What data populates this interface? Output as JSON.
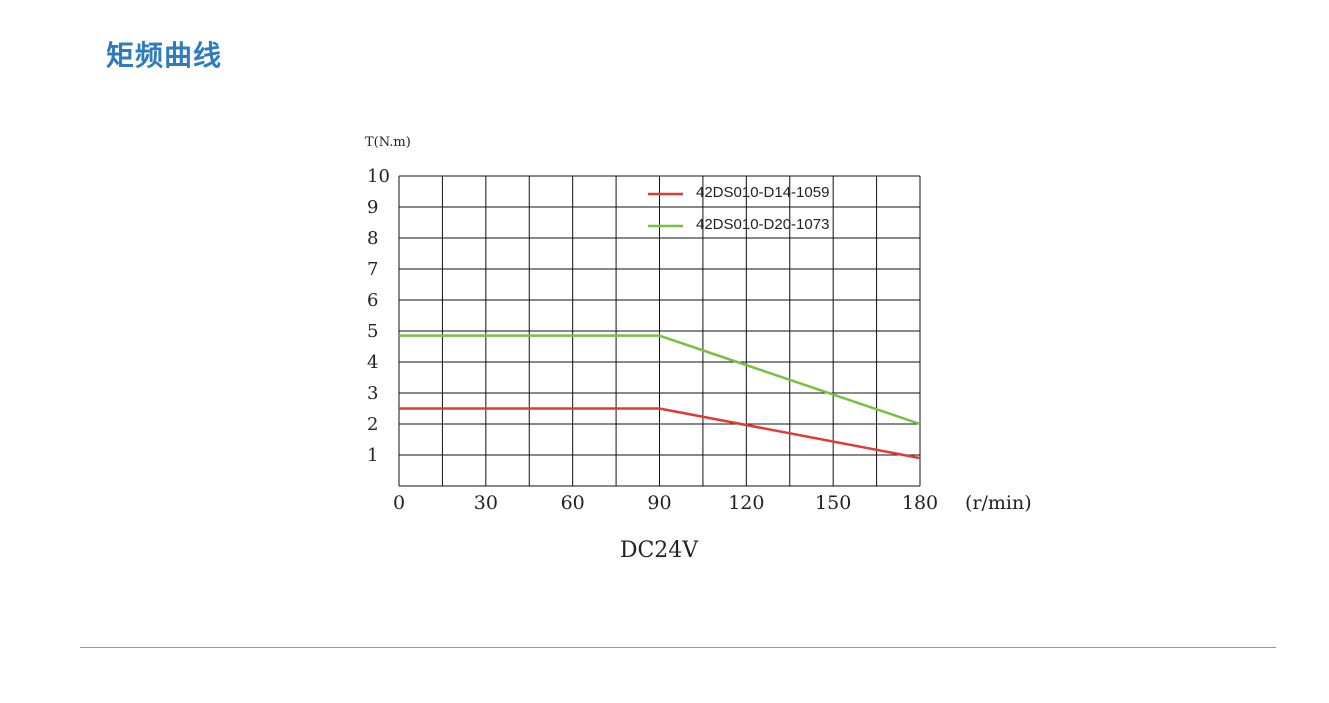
{
  "page": {
    "title": "矩频曲线"
  },
  "chart_data": {
    "type": "line",
    "title": "",
    "xlabel": "(r/min)",
    "ylabel": "T(N.m)",
    "caption": "DC24V",
    "xlim": [
      0,
      180
    ],
    "ylim": [
      0,
      10
    ],
    "x_ticks": [
      0,
      30,
      60,
      90,
      120,
      150,
      180
    ],
    "y_ticks": [
      1,
      2,
      3,
      4,
      5,
      6,
      7,
      8,
      9,
      10
    ],
    "x_grid_step": 15,
    "y_grid_step": 1,
    "grid": true,
    "legend_position": "top-right",
    "series": [
      {
        "name": "42DS010-D14-1059",
        "color": "#e03a32",
        "x": [
          0,
          90,
          180
        ],
        "y": [
          2.5,
          2.5,
          0.9
        ]
      },
      {
        "name": "42DS010-D20-1073",
        "color": "#78c042",
        "x": [
          0,
          90,
          180
        ],
        "y": [
          4.85,
          4.85,
          2.0
        ]
      }
    ]
  }
}
